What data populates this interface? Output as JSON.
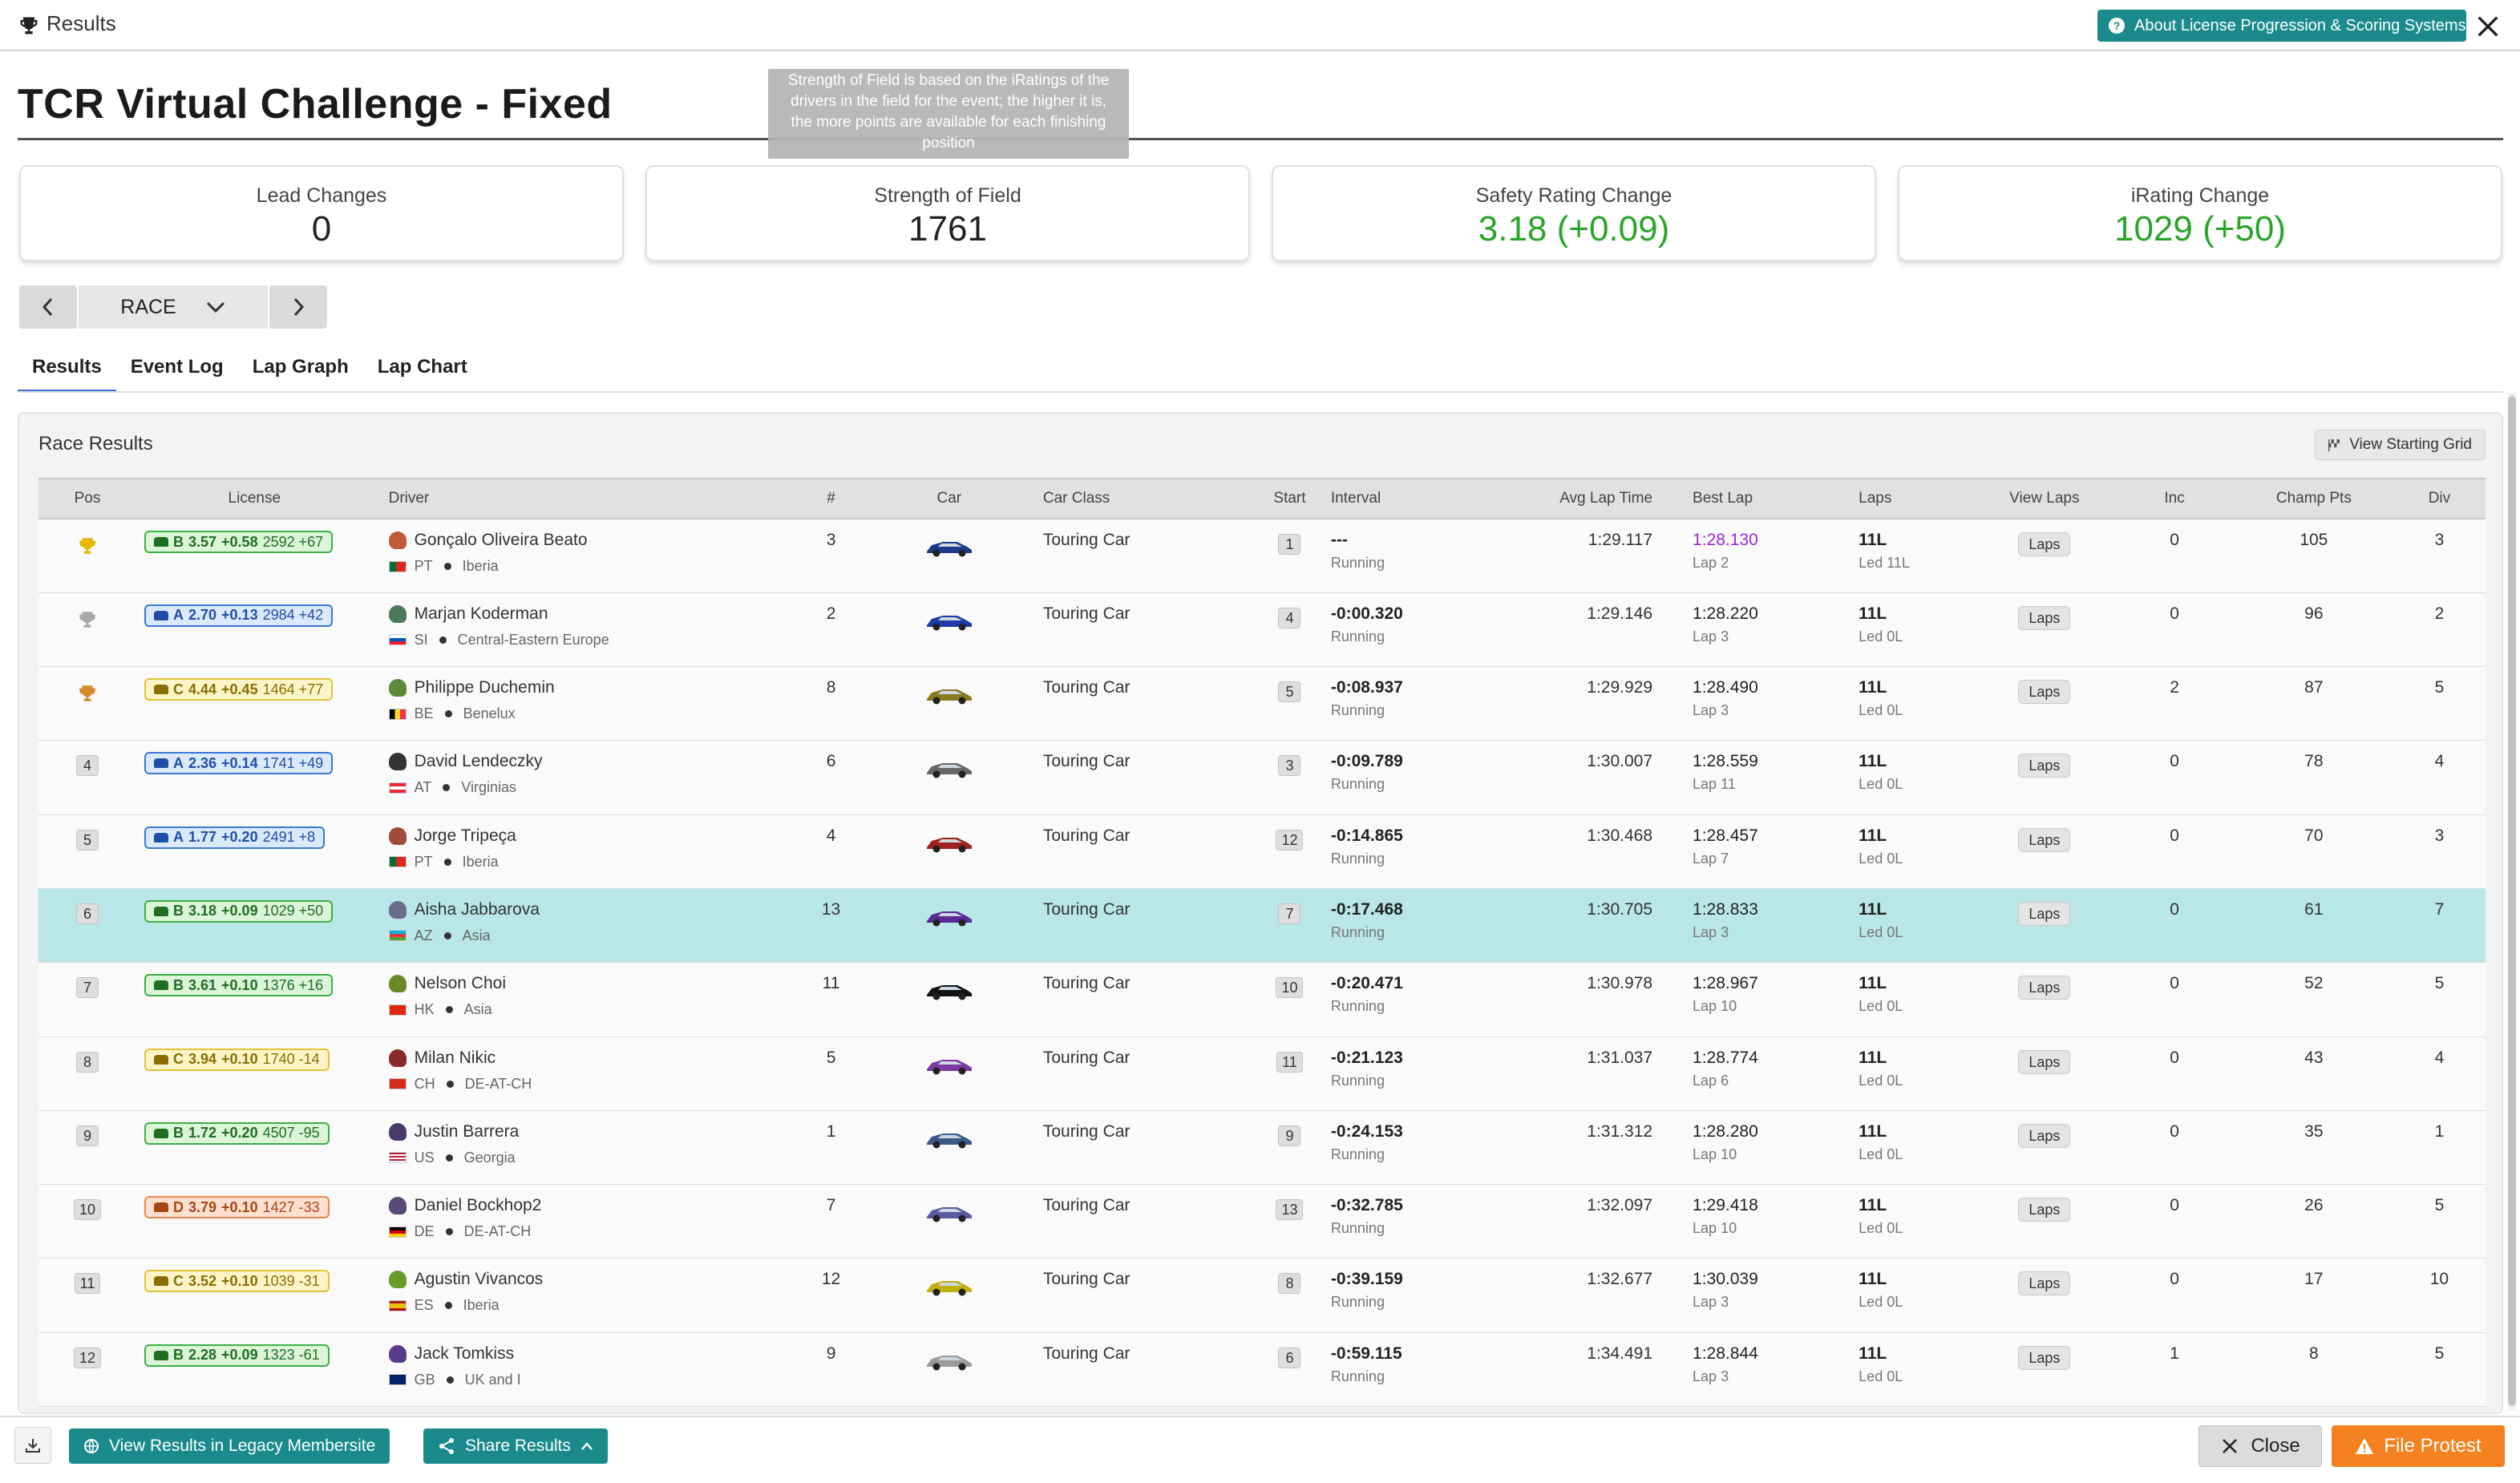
{
  "window": {
    "title": "Results",
    "about_label": "About License Progression & Scoring Systems"
  },
  "page_title": "TCR Virtual Challenge - Fixed",
  "tooltip": "Strength of Field is based on the iRatings of the drivers in the field for the event; the higher it is, the more points are available for each finishing position",
  "stats": [
    {
      "label": "Lead Changes",
      "value": "0"
    },
    {
      "label": "Strength of Field",
      "value": "1761"
    },
    {
      "label": "Safety Rating Change",
      "value": "3.18 (+0.09)"
    },
    {
      "label": "iRating Change",
      "value": "1029 (+50)"
    }
  ],
  "session": {
    "label": "RACE"
  },
  "tabs": [
    "Results",
    "Event Log",
    "Lap Graph",
    "Lap Chart"
  ],
  "panel": {
    "title": "Race Results",
    "starting_grid_label": "View Starting Grid"
  },
  "columns": [
    "Pos",
    "License",
    "Driver",
    "#",
    "Car",
    "Car Class",
    "Start",
    "Interval",
    "Avg Lap Time",
    "Best Lap",
    "Laps",
    "View Laps",
    "Inc",
    "Champ Pts",
    "Div"
  ],
  "rows": [
    {
      "pos": "1",
      "trophy": "gold",
      "lic_class": "B",
      "lic_sr": "3.57",
      "lic_delta": "+0.58",
      "lic_ir": "2592 +67",
      "driver": "Gonçalo Oliveira Beato",
      "helmet": "#c05a3a",
      "flag": "PT",
      "region": "Iberia",
      "num": "3",
      "car_color": "#1e3a8a",
      "car_class": "Touring Car",
      "start": "1",
      "interval": "---",
      "status": "Running",
      "avg": "1:29.117",
      "best": "1:28.130",
      "best_lap": "Lap 2",
      "laps": "11L",
      "led": "Led 11L",
      "view": "Laps",
      "inc": "0",
      "champ": "105",
      "div": "3"
    },
    {
      "pos": "2",
      "trophy": "silver",
      "lic_class": "A",
      "lic_sr": "2.70",
      "lic_delta": "+0.13",
      "lic_ir": "2984 +42",
      "driver": "Marjan Koderman",
      "helmet": "#4a7a5a",
      "flag": "SI",
      "region": "Central-Eastern Europe",
      "num": "2",
      "car_color": "#1e3aa8",
      "car_class": "Touring Car",
      "start": "4",
      "interval": "-0:00.320",
      "status": "Running",
      "avg": "1:29.146",
      "best": "1:28.220",
      "best_lap": "Lap 3",
      "laps": "11L",
      "led": "Led 0L",
      "view": "Laps",
      "inc": "0",
      "champ": "96",
      "div": "2"
    },
    {
      "pos": "3",
      "trophy": "bronze",
      "lic_class": "C",
      "lic_sr": "4.44",
      "lic_delta": "+0.45",
      "lic_ir": "1464 +77",
      "driver": "Philippe Duchemin",
      "helmet": "#5a8a3a",
      "flag": "BE",
      "region": "Benelux",
      "num": "8",
      "car_color": "#8a7a20",
      "car_class": "Touring Car",
      "start": "5",
      "interval": "-0:08.937",
      "status": "Running",
      "avg": "1:29.929",
      "best": "1:28.490",
      "best_lap": "Lap 3",
      "laps": "11L",
      "led": "Led 0L",
      "view": "Laps",
      "inc": "2",
      "champ": "87",
      "div": "5"
    },
    {
      "pos": "4",
      "trophy": "",
      "lic_class": "A",
      "lic_sr": "2.36",
      "lic_delta": "+0.14",
      "lic_ir": "1741 +49",
      "driver": "David Lendeczky",
      "helmet": "#333333",
      "flag": "AT",
      "region": "Virginias",
      "num": "6",
      "car_color": "#666666",
      "car_class": "Touring Car",
      "start": "3",
      "interval": "-0:09.789",
      "status": "Running",
      "avg": "1:30.007",
      "best": "1:28.559",
      "best_lap": "Lap 11",
      "laps": "11L",
      "led": "Led 0L",
      "view": "Laps",
      "inc": "0",
      "champ": "78",
      "div": "4"
    },
    {
      "pos": "5",
      "trophy": "",
      "lic_class": "A",
      "lic_sr": "1.77",
      "lic_delta": "+0.20",
      "lic_ir": "2491 +8",
      "driver": "Jorge Tripeça",
      "helmet": "#a04a3a",
      "flag": "PT",
      "region": "Iberia",
      "num": "4",
      "car_color": "#a02020",
      "car_class": "Touring Car",
      "start": "12",
      "interval": "-0:14.865",
      "status": "Running",
      "avg": "1:30.468",
      "best": "1:28.457",
      "best_lap": "Lap 7",
      "laps": "11L",
      "led": "Led 0L",
      "view": "Laps",
      "inc": "0",
      "champ": "70",
      "div": "3"
    },
    {
      "pos": "6",
      "trophy": "",
      "lic_class": "B",
      "lic_sr": "3.18",
      "lic_delta": "+0.09",
      "lic_ir": "1029 +50",
      "driver": "Aisha Jabbarova",
      "helmet": "#6a6a8a",
      "flag": "AZ",
      "region": "Asia",
      "num": "13",
      "car_color": "#5a2a9a",
      "car_class": "Touring Car",
      "start": "7",
      "interval": "-0:17.468",
      "status": "Running",
      "avg": "1:30.705",
      "best": "1:28.833",
      "best_lap": "Lap 3",
      "laps": "11L",
      "led": "Led 0L",
      "view": "Laps",
      "inc": "0",
      "champ": "61",
      "div": "7",
      "highlight": true
    },
    {
      "pos": "7",
      "trophy": "",
      "lic_class": "B",
      "lic_sr": "3.61",
      "lic_delta": "+0.10",
      "lic_ir": "1376 +16",
      "driver": "Nelson Choi",
      "helmet": "#6a8a2a",
      "flag": "HK",
      "region": "Asia",
      "num": "11",
      "car_color": "#111111",
      "car_class": "Touring Car",
      "start": "10",
      "interval": "-0:20.471",
      "status": "Running",
      "avg": "1:30.978",
      "best": "1:28.967",
      "best_lap": "Lap 10",
      "laps": "11L",
      "led": "Led 0L",
      "view": "Laps",
      "inc": "0",
      "champ": "52",
      "div": "5"
    },
    {
      "pos": "8",
      "trophy": "",
      "lic_class": "C",
      "lic_sr": "3.94",
      "lic_delta": "+0.10",
      "lic_ir": "1740 -14",
      "driver": "Milan Nikic",
      "helmet": "#8a2a2a",
      "flag": "CH",
      "region": "DE-AT-CH",
      "num": "5",
      "car_color": "#7a3aa0",
      "car_class": "Touring Car",
      "start": "11",
      "interval": "-0:21.123",
      "status": "Running",
      "avg": "1:31.037",
      "best": "1:28.774",
      "best_lap": "Lap 6",
      "laps": "11L",
      "led": "Led 0L",
      "view": "Laps",
      "inc": "0",
      "champ": "43",
      "div": "4"
    },
    {
      "pos": "9",
      "trophy": "",
      "lic_class": "B",
      "lic_sr": "1.72",
      "lic_delta": "+0.20",
      "lic_ir": "4507 -95",
      "driver": "Justin Barrera",
      "helmet": "#4a3a6a",
      "flag": "US",
      "region": "Georgia",
      "num": "1",
      "car_color": "#3a5a8a",
      "car_class": "Touring Car",
      "start": "9",
      "interval": "-0:24.153",
      "status": "Running",
      "avg": "1:31.312",
      "best": "1:28.280",
      "best_lap": "Lap 10",
      "laps": "11L",
      "led": "Led 0L",
      "view": "Laps",
      "inc": "0",
      "champ": "35",
      "div": "1"
    },
    {
      "pos": "10",
      "trophy": "",
      "lic_class": "D",
      "lic_sr": "3.79",
      "lic_delta": "+0.10",
      "lic_ir": "1427 -33",
      "driver": "Daniel Bockhop2",
      "helmet": "#5a4a7a",
      "flag": "DE",
      "region": "DE-AT-CH",
      "num": "7",
      "car_color": "#5a5aa0",
      "car_class": "Touring Car",
      "start": "13",
      "interval": "-0:32.785",
      "status": "Running",
      "avg": "1:32.097",
      "best": "1:29.418",
      "best_lap": "Lap 10",
      "laps": "11L",
      "led": "Led 0L",
      "view": "Laps",
      "inc": "0",
      "champ": "26",
      "div": "5"
    },
    {
      "pos": "11",
      "trophy": "",
      "lic_class": "C",
      "lic_sr": "3.52",
      "lic_delta": "+0.10",
      "lic_ir": "1039 -31",
      "driver": "Agustin Vivancos",
      "helmet": "#6a9a2a",
      "flag": "ES",
      "region": "Iberia",
      "num": "12",
      "car_color": "#c0b010",
      "car_class": "Touring Car",
      "start": "8",
      "interval": "-0:39.159",
      "status": "Running",
      "avg": "1:32.677",
      "best": "1:30.039",
      "best_lap": "Lap 3",
      "laps": "11L",
      "led": "Led 0L",
      "view": "Laps",
      "inc": "0",
      "champ": "17",
      "div": "10"
    },
    {
      "pos": "12",
      "trophy": "",
      "lic_class": "B",
      "lic_sr": "2.28",
      "lic_delta": "+0.09",
      "lic_ir": "1323 -61",
      "driver": "Jack Tomkiss",
      "helmet": "#5a3a8a",
      "flag": "GB",
      "region": "UK and I",
      "num": "9",
      "car_color": "#9a9a9a",
      "car_class": "Touring Car",
      "start": "6",
      "interval": "-0:59.115",
      "status": "Running",
      "avg": "1:34.491",
      "best": "1:28.844",
      "best_lap": "Lap 3",
      "laps": "11L",
      "led": "Led 0L",
      "view": "Laps",
      "inc": "1",
      "champ": "8",
      "div": "5"
    }
  ],
  "footer": {
    "legacy_label": "View Results in Legacy Membersite",
    "share_label": "Share Results",
    "close_label": "Close",
    "protest_label": "File Protest"
  },
  "colors": {
    "teal": "#1a8a8c",
    "orange": "#f58220",
    "green": "#2aa52a",
    "purple": "#9a28d6",
    "highlight": "#b9e6e6"
  }
}
